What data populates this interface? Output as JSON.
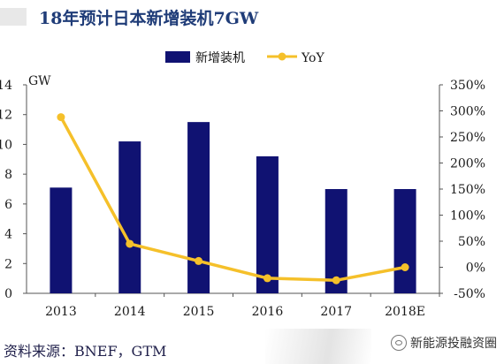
{
  "title": "18年预计日本新增装机7GW",
  "source": "资料来源：BNEF，GTM",
  "watermark": "新能源投融资圈",
  "colors": {
    "bar": "#101272",
    "line": "#f5c02a",
    "title": "#1f3c78",
    "text": "#1a1a1a"
  },
  "chart_data": {
    "type": "bar",
    "categories": [
      "2013",
      "2014",
      "2015",
      "2016",
      "2017",
      "2018E"
    ],
    "series": [
      {
        "name": "新增装机",
        "type": "bar",
        "axis": "left",
        "values": [
          7.1,
          10.2,
          11.5,
          9.2,
          7.0,
          7.0
        ]
      },
      {
        "name": "YoY",
        "type": "line",
        "axis": "right",
        "values": [
          2.88,
          0.45,
          0.12,
          -0.21,
          -0.25,
          0.0
        ]
      }
    ],
    "y_left": {
      "unit_label": "GW",
      "min": 0,
      "max": 14,
      "ticks": [
        "0",
        "2",
        "4",
        "6",
        "8",
        "10",
        "12",
        "14"
      ]
    },
    "y_right": {
      "min": -0.5,
      "max": 3.5,
      "ticks": [
        "-50%",
        "0%",
        "50%",
        "100%",
        "150%",
        "200%",
        "250%",
        "300%",
        "350%"
      ]
    },
    "legend_position": "top-center",
    "grid": false
  }
}
